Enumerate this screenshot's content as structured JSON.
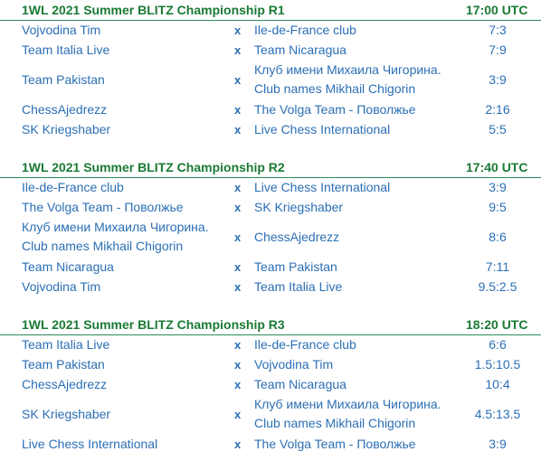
{
  "rounds": [
    {
      "title": "1WL 2021 Summer BLITZ Championship R1",
      "time": "17:00 UTC",
      "matches": [
        {
          "team1": "Vojvodina Tim",
          "team1b": "",
          "vs": "x",
          "team2": "Ile-de-France club",
          "team2b": "",
          "score": "7:3"
        },
        {
          "team1": "Team Italia Live",
          "team1b": "",
          "vs": "x",
          "team2": "Team Nicaragua",
          "team2b": "",
          "score": "7:9"
        },
        {
          "team1": "Team Pakistan",
          "team1b": "",
          "vs": "x",
          "team2": "Клуб имени Михаила Чигорина.",
          "team2b": "Club names Mikhail Chigorin",
          "score": "3:9"
        },
        {
          "team1": "ChessAjedrezz",
          "team1b": "",
          "vs": "x",
          "team2": "The Volga Team - Поволжье",
          "team2b": "",
          "score": "2:16"
        },
        {
          "team1": "SK Kriegshaber",
          "team1b": "",
          "vs": "x",
          "team2": "Live Chess International",
          "team2b": "",
          "score": "5:5"
        }
      ]
    },
    {
      "title": "1WL 2021 Summer BLITZ Championship R2",
      "time": "17:40 UTC",
      "matches": [
        {
          "team1": "Ile-de-France club",
          "team1b": "",
          "vs": "x",
          "team2": "Live Chess International",
          "team2b": "",
          "score": "3:9"
        },
        {
          "team1": "The Volga Team - Поволжье",
          "team1b": "",
          "vs": "x",
          "team2": "SK Kriegshaber",
          "team2b": "",
          "score": "9:5"
        },
        {
          "team1": "Клуб имени Михаила Чигорина.",
          "team1b": "Club names Mikhail Chigorin",
          "vs": "x",
          "team2": "ChessAjedrezz",
          "team2b": "",
          "score": "8:6"
        },
        {
          "team1": "Team Nicaragua",
          "team1b": "",
          "vs": "x",
          "team2": "Team Pakistan",
          "team2b": "",
          "score": "7:11"
        },
        {
          "team1": "Vojvodina Tim",
          "team1b": "",
          "vs": "x",
          "team2": "Team Italia Live",
          "team2b": "",
          "score": "9.5:2.5"
        }
      ]
    },
    {
      "title": "1WL 2021 Summer BLITZ Championship R3",
      "time": "18:20 UTC",
      "matches": [
        {
          "team1": "Team Italia Live",
          "team1b": "",
          "vs": "x",
          "team2": "Ile-de-France club",
          "team2b": "",
          "score": "6:6"
        },
        {
          "team1": "Team Pakistan",
          "team1b": "",
          "vs": "x",
          "team2": "Vojvodina Tim",
          "team2b": "",
          "score": "1.5:10.5"
        },
        {
          "team1": "ChessAjedrezz",
          "team1b": "",
          "vs": "x",
          "team2": "Team Nicaragua",
          "team2b": "",
          "score": "10:4"
        },
        {
          "team1": "SK Kriegshaber",
          "team1b": "",
          "vs": "x",
          "team2": "Клуб имени Михаила Чигорина.",
          "team2b": "Club names Mikhail Chigorin",
          "score": "4.5:13.5"
        },
        {
          "team1": "Live Chess International",
          "team1b": "",
          "vs": "x",
          "team2": "The Volga Team - Поволжье",
          "team2b": "",
          "score": "3:9"
        }
      ]
    }
  ]
}
